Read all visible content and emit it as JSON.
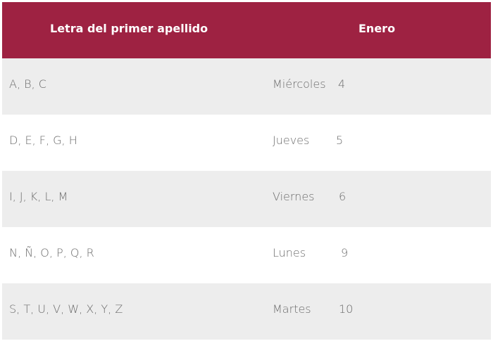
{
  "header": {
    "col1": "Letra del primer apellido",
    "col2": "Enero"
  },
  "rows": [
    {
      "letters": "A, B, C",
      "day": "Miércoles",
      "date": "4"
    },
    {
      "letters": "D, E, F, G, H",
      "day": "Jueves",
      "date": "5"
    },
    {
      "letters": "I, J, K, L, M",
      "day": "Viernes",
      "date": "6"
    },
    {
      "letters": "N, Ñ, O, P, Q, R",
      "day": "Lunes",
      "date": "9"
    },
    {
      "letters": "S, T, U, V, W, X, Y, Z",
      "day": "Martes",
      "date": "10"
    }
  ],
  "colors": {
    "header_bg": "#9e2242",
    "row_alt_bg": "#ededed",
    "text": "#6b6b6b"
  }
}
